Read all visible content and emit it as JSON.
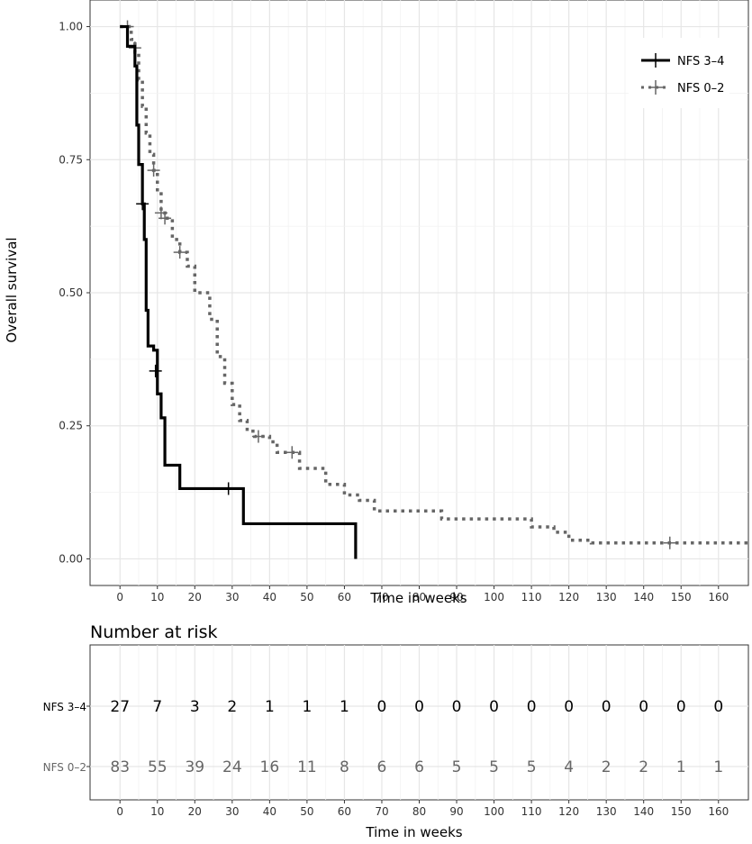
{
  "chart_data": [
    {
      "type": "line",
      "subtype": "kaplan-meier",
      "title": "",
      "xlabel": "Time in weeks",
      "ylabel": "Overall survival",
      "xlim": [
        -8,
        168
      ],
      "ylim": [
        -0.05,
        1.05
      ],
      "x_ticks": [
        0,
        10,
        20,
        30,
        40,
        50,
        60,
        70,
        80,
        90,
        100,
        110,
        120,
        130,
        140,
        150,
        160
      ],
      "y_ticks": [
        0.0,
        0.25,
        0.5,
        0.75,
        1.0
      ],
      "y_tick_labels": [
        "0.00",
        "0.25",
        "0.50",
        "0.75",
        "1.00"
      ],
      "grid": true,
      "legend_position": "top-right",
      "series": [
        {
          "name": "NFS 3–4",
          "color": "#000000",
          "style": "solid",
          "steps": [
            [
              0,
              1.0
            ],
            [
              2,
              0.963
            ],
            [
              4,
              0.926
            ],
            [
              4.5,
              0.815
            ],
            [
              5,
              0.741
            ],
            [
              6,
              0.667
            ],
            [
              6.5,
              0.6
            ],
            [
              7,
              0.467
            ],
            [
              7.5,
              0.4
            ],
            [
              9,
              0.392
            ],
            [
              10,
              0.31
            ],
            [
              11,
              0.265
            ],
            [
              12,
              0.176
            ],
            [
              16,
              0.132
            ],
            [
              33,
              0.066
            ],
            [
              63,
              0.0
            ]
          ],
          "end_x": 63,
          "censored": [
            [
              6,
              0.667
            ],
            [
              9.5,
              0.353
            ],
            [
              29,
              0.132
            ]
          ]
        },
        {
          "name": "NFS 0–2",
          "color": "#666666",
          "style": "dotted",
          "steps": [
            [
              0,
              1.0
            ],
            [
              3,
              0.976
            ],
            [
              4,
              0.952
            ],
            [
              5,
              0.9
            ],
            [
              6,
              0.85
            ],
            [
              7,
              0.8
            ],
            [
              8,
              0.76
            ],
            [
              9,
              0.73
            ],
            [
              10,
              0.69
            ],
            [
              11,
              0.65
            ],
            [
              12,
              0.64
            ],
            [
              14,
              0.6
            ],
            [
              16,
              0.576
            ],
            [
              18,
              0.55
            ],
            [
              20,
              0.5
            ],
            [
              24,
              0.45
            ],
            [
              26,
              0.38
            ],
            [
              28,
              0.33
            ],
            [
              30,
              0.29
            ],
            [
              32,
              0.26
            ],
            [
              34,
              0.24
            ],
            [
              36,
              0.23
            ],
            [
              40,
              0.22
            ],
            [
              42,
              0.2
            ],
            [
              48,
              0.17
            ],
            [
              55,
              0.14
            ],
            [
              60,
              0.12
            ],
            [
              64,
              0.11
            ],
            [
              68,
              0.09
            ],
            [
              86,
              0.075
            ],
            [
              110,
              0.06
            ],
            [
              116,
              0.05
            ],
            [
              120,
              0.035
            ],
            [
              126,
              0.03
            ]
          ],
          "end_x": 168,
          "censored": [
            [
              2,
              1.0
            ],
            [
              4,
              0.96
            ],
            [
              9,
              0.73
            ],
            [
              11,
              0.65
            ],
            [
              12,
              0.64
            ],
            [
              16,
              0.576
            ],
            [
              37,
              0.23
            ],
            [
              46,
              0.2
            ],
            [
              147,
              0.03
            ]
          ]
        }
      ]
    },
    {
      "type": "table",
      "title": "Number at risk",
      "xlabel": "Time in weeks",
      "times": [
        0,
        10,
        20,
        30,
        40,
        50,
        60,
        70,
        80,
        90,
        100,
        110,
        120,
        130,
        140,
        150,
        160
      ],
      "rows": [
        {
          "name": "NFS 3–4",
          "color": "#000000",
          "values": [
            27,
            7,
            3,
            2,
            1,
            1,
            1,
            0,
            0,
            0,
            0,
            0,
            0,
            0,
            0,
            0,
            0
          ]
        },
        {
          "name": "NFS 0–2",
          "color": "#666666",
          "values": [
            83,
            55,
            39,
            24,
            16,
            11,
            8,
            6,
            6,
            5,
            5,
            5,
            4,
            2,
            2,
            1,
            1
          ]
        }
      ]
    }
  ]
}
